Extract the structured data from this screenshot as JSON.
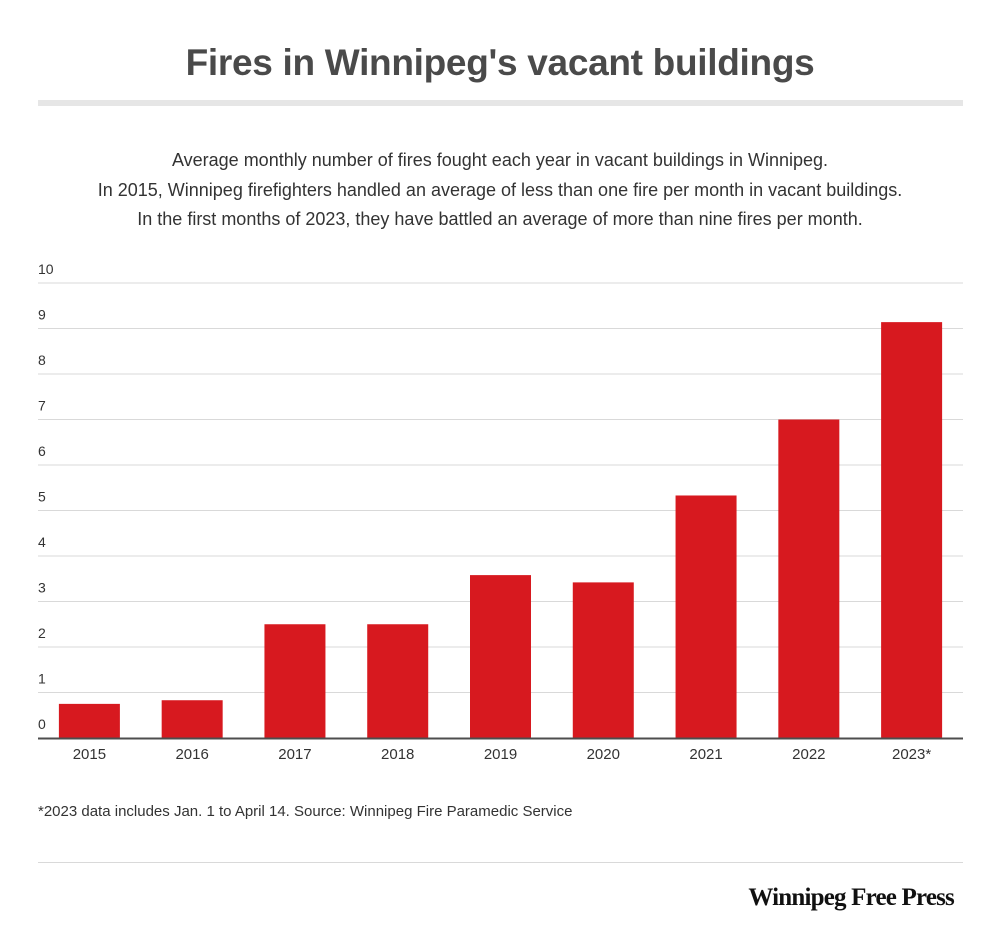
{
  "title": "Fires in Winnipeg's vacant buildings",
  "subtitle_lines": [
    "Average monthly number of fires fought each year in vacant buildings in Winnipeg.",
    "In 2015, Winnipeg firefighters handled an average of less than one fire per month in vacant buildings.",
    "In the first months of 2023, they have battled an average of more than nine fires per month."
  ],
  "footnote": "*2023 data includes Jan. 1 to April 14. Source: Winnipeg Fire Paramedic Service",
  "brand": "Winnipeg Free Press",
  "colors": {
    "bar": "#d7191f",
    "grid": "#d9d9d9",
    "axis": "#4d4d4d",
    "text": "#333333"
  },
  "chart_data": {
    "type": "bar",
    "categories": [
      "2015",
      "2016",
      "2017",
      "2018",
      "2019",
      "2020",
      "2021",
      "2022",
      "2023*"
    ],
    "values": [
      0.75,
      0.83,
      2.5,
      2.5,
      3.58,
      3.42,
      5.33,
      7.0,
      9.14
    ],
    "title": "Fires in Winnipeg's vacant buildings",
    "xlabel": "",
    "ylabel": "",
    "ylim": [
      0,
      10
    ],
    "yticks": [
      "0",
      "1",
      "2",
      "3",
      "4",
      "5",
      "6",
      "7",
      "8",
      "9",
      "10"
    ],
    "grid": true,
    "legend": "none"
  }
}
